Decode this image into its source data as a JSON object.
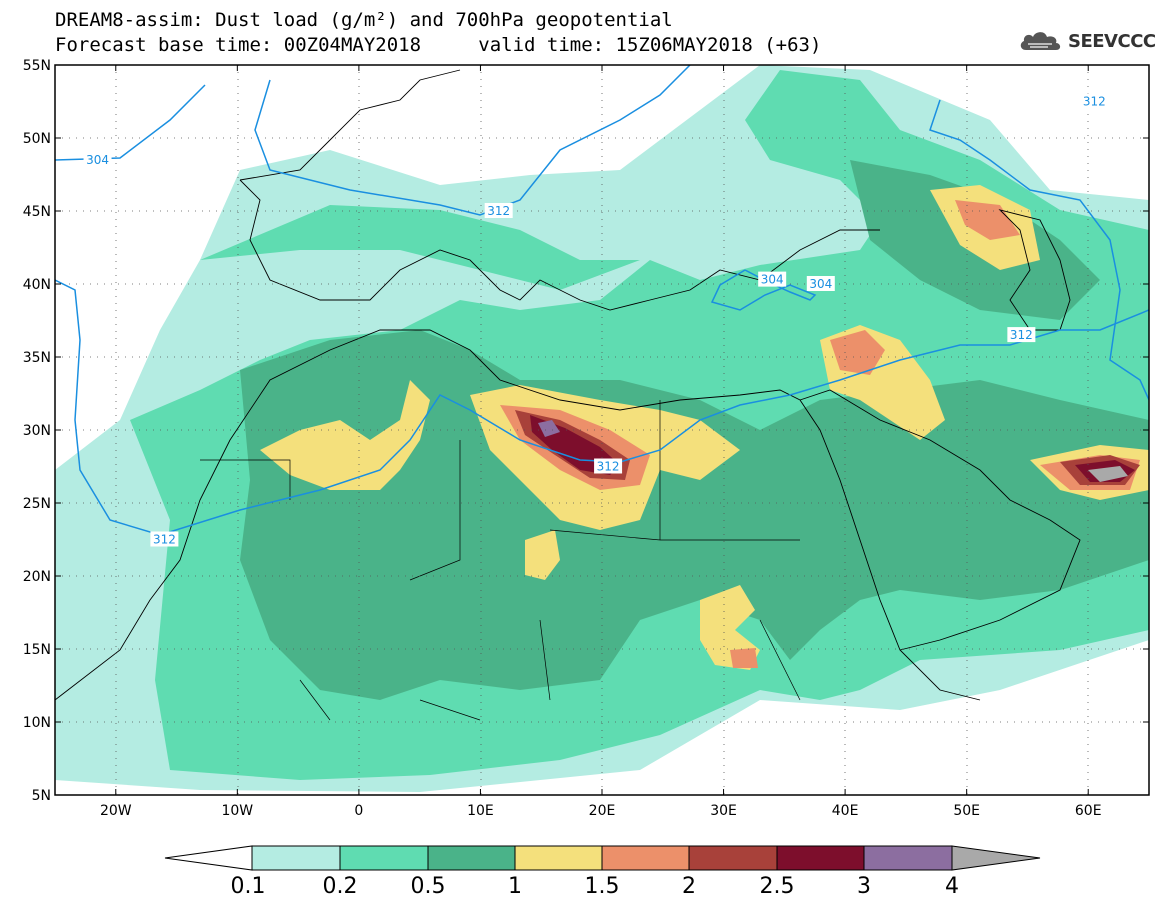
{
  "title": {
    "line1": "DREAM8-assim: Dust load (g/m²) and 700hPa geopotential",
    "line2_left": "Forecast base time: 00Z04MAY2018",
    "line2_right": "valid time: 15Z06MAY2018 (+63)"
  },
  "logo": {
    "text": "SEEVCCC",
    "icon": "cloud-icon"
  },
  "map": {
    "lon_range": [
      -25,
      65
    ],
    "lat_range": [
      5,
      55
    ],
    "lat_ticks": [
      "55N",
      "50N",
      "45N",
      "40N",
      "35N",
      "30N",
      "25N",
      "20N",
      "15N",
      "10N",
      "5N"
    ],
    "lon_ticks": [
      "20W",
      "10W",
      "0",
      "10E",
      "20E",
      "30E",
      "40E",
      "50E",
      "60E"
    ],
    "grid": "dotted",
    "contours": [
      {
        "label": "304",
        "lon": -21.5,
        "lat": 48.5
      },
      {
        "label": "312",
        "lon": 11.5,
        "lat": 45.0
      },
      {
        "label": "312",
        "lon": 60.5,
        "lat": 52.5
      },
      {
        "label": "304",
        "lon": 34.0,
        "lat": 40.3
      },
      {
        "label": "304",
        "lon": 38.0,
        "lat": 40.0
      },
      {
        "label": "312",
        "lon": 54.5,
        "lat": 36.5
      },
      {
        "label": "312",
        "lon": 20.5,
        "lat": 27.5
      },
      {
        "label": "312",
        "lon": -16.0,
        "lat": 22.5
      }
    ]
  },
  "colorbar": {
    "labels": [
      "0.1",
      "0.2",
      "0.5",
      "1",
      "1.5",
      "2",
      "2.5",
      "3",
      "4"
    ],
    "colors": {
      "under": "#ffffff",
      "c1": "#b4ece2",
      "c2": "#5fdcb1",
      "c3": "#4ab389",
      "c4": "#f4e07c",
      "c5": "#ec906a",
      "c6": "#a8413a",
      "c7": "#7d0e2c",
      "c8": "#8c6ea0",
      "over": "#a9a9a9"
    }
  }
}
